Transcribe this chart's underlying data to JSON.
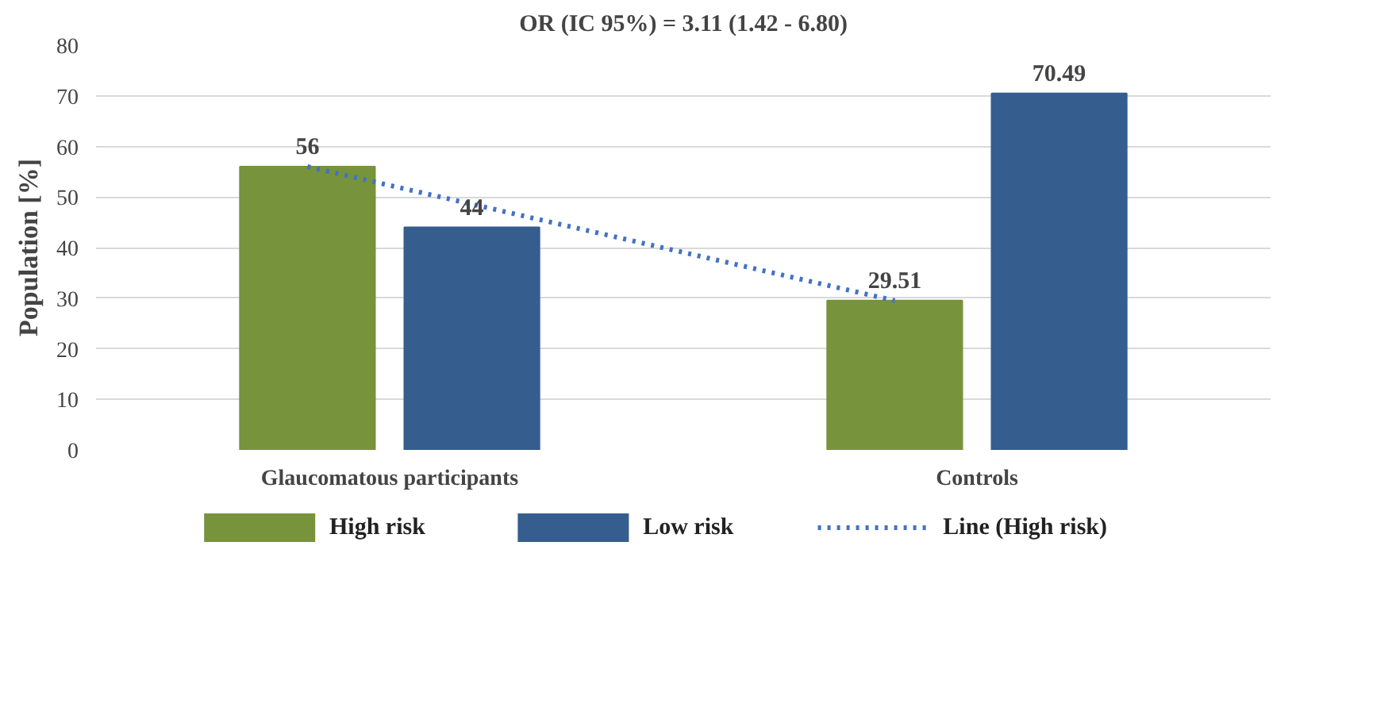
{
  "chart_data": {
    "type": "bar",
    "title": "OR (IC 95%) = 3.11 (1.42 - 6.80)",
    "ylabel": "Population [%]",
    "categories": [
      "Glaucomatous participants",
      "Controls"
    ],
    "series": [
      {
        "name": "High risk",
        "color": "#77933c",
        "values": [
          56,
          29.51
        ],
        "value_labels": [
          "56",
          "29.51"
        ]
      },
      {
        "name": "Low risk",
        "color": "#355e8f",
        "values": [
          44,
          70.49
        ],
        "value_labels": [
          "44",
          "70.49"
        ]
      },
      {
        "name": "Line (High risk)",
        "type": "line",
        "color": "#4472c4",
        "values": [
          56,
          29.51
        ],
        "line_style": "dotted"
      }
    ],
    "ylim": [
      0,
      80
    ],
    "yticks": [
      0,
      10,
      20,
      30,
      40,
      50,
      60,
      70,
      80
    ],
    "grid": "y",
    "legend": "bottom"
  }
}
